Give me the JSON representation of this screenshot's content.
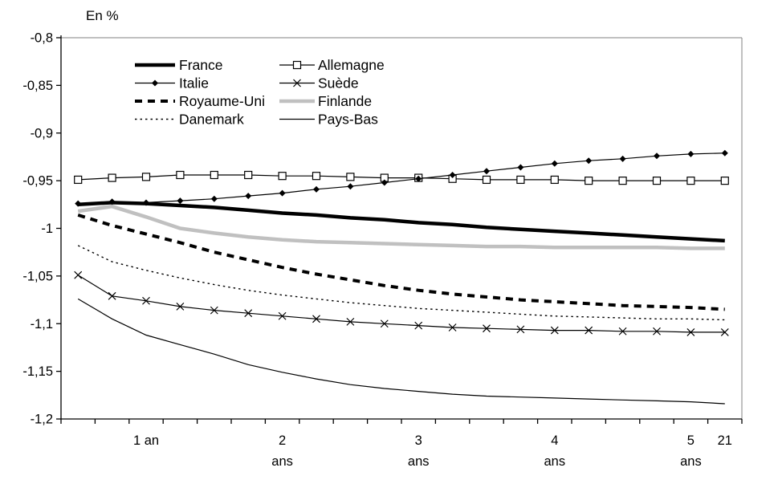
{
  "title": "En %",
  "colors": {
    "axis": "#000000",
    "plot_border": "#808080",
    "background": "#ffffff",
    "finland_gray": "#c0c0c0"
  },
  "chart_data": {
    "type": "line",
    "title": "En %",
    "x_categories": [
      0.5,
      0.75,
      1,
      1.25,
      1.5,
      1.75,
      2,
      2.25,
      2.5,
      2.75,
      3,
      3.25,
      3.5,
      3.75,
      4,
      4.25,
      4.5,
      4.75,
      5,
      21
    ],
    "x_axis_labels": [
      {
        "point_index": 2,
        "lines": [
          "1 an"
        ]
      },
      {
        "point_index": 6,
        "lines": [
          "2",
          "ans"
        ]
      },
      {
        "point_index": 10,
        "lines": [
          "3",
          "ans"
        ]
      },
      {
        "point_index": 14,
        "lines": [
          "4",
          "ans"
        ]
      },
      {
        "point_index": 18,
        "lines": [
          "5",
          "ans"
        ]
      },
      {
        "point_index": 19,
        "lines": [
          "21"
        ]
      }
    ],
    "ylim": [
      -1.2,
      -0.8
    ],
    "y_ticks": [
      {
        "value": -0.8,
        "label": "-0,8"
      },
      {
        "value": -0.85,
        "label": "-0,85"
      },
      {
        "value": -0.9,
        "label": "-0,9"
      },
      {
        "value": -0.95,
        "label": "-0,95"
      },
      {
        "value": -1.0,
        "label": "-1"
      },
      {
        "value": -1.05,
        "label": "-1,05"
      },
      {
        "value": -1.1,
        "label": "-1,1"
      },
      {
        "value": -1.15,
        "label": "-1,15"
      },
      {
        "value": -1.2,
        "label": "-1,2"
      }
    ],
    "grid": false,
    "series": [
      {
        "name": "France",
        "color": "#000000",
        "width": 4.5,
        "dash": null,
        "marker": null,
        "values": [
          -0.975,
          -0.973,
          -0.974,
          -0.976,
          -0.978,
          -0.981,
          -0.984,
          -0.986,
          -0.989,
          -0.991,
          -0.994,
          -0.996,
          -0.999,
          -1.001,
          -1.003,
          -1.005,
          -1.007,
          -1.009,
          -1.011,
          -1.013
        ]
      },
      {
        "name": "Italie",
        "color": "#000000",
        "width": 1.2,
        "dash": null,
        "marker": "diamond",
        "values": [
          -0.974,
          -0.972,
          -0.973,
          -0.971,
          -0.969,
          -0.966,
          -0.963,
          -0.959,
          -0.956,
          -0.952,
          -0.948,
          -0.944,
          -0.94,
          -0.936,
          -0.932,
          -0.929,
          -0.927,
          -0.924,
          -0.922,
          -0.921
        ]
      },
      {
        "name": "Royaume-Uni",
        "color": "#000000",
        "width": 4,
        "dash": "9 7",
        "marker": null,
        "values": [
          -0.986,
          -0.997,
          -1.006,
          -1.015,
          -1.025,
          -1.033,
          -1.041,
          -1.048,
          -1.054,
          -1.06,
          -1.065,
          -1.069,
          -1.072,
          -1.075,
          -1.077,
          -1.079,
          -1.081,
          -1.082,
          -1.083,
          -1.085
        ]
      },
      {
        "name": "Danemark",
        "color": "#000000",
        "width": 1.4,
        "dash": "2.5 4",
        "marker": null,
        "values": [
          -1.018,
          -1.035,
          -1.044,
          -1.052,
          -1.059,
          -1.065,
          -1.07,
          -1.074,
          -1.078,
          -1.081,
          -1.084,
          -1.086,
          -1.088,
          -1.09,
          -1.092,
          -1.093,
          -1.094,
          -1.095,
          -1.095,
          -1.096
        ]
      },
      {
        "name": "Allemagne",
        "color": "#000000",
        "width": 1.2,
        "dash": null,
        "marker": "square-open",
        "values": [
          -0.949,
          -0.947,
          -0.946,
          -0.944,
          -0.944,
          -0.944,
          -0.945,
          -0.945,
          -0.946,
          -0.947,
          -0.947,
          -0.948,
          -0.949,
          -0.949,
          -0.949,
          -0.95,
          -0.95,
          -0.95,
          -0.95,
          -0.95
        ]
      },
      {
        "name": "Suède",
        "color": "#000000",
        "width": 1.2,
        "dash": null,
        "marker": "x",
        "values": [
          -1.049,
          -1.071,
          -1.076,
          -1.082,
          -1.086,
          -1.089,
          -1.092,
          -1.095,
          -1.098,
          -1.1,
          -1.102,
          -1.104,
          -1.105,
          -1.106,
          -1.107,
          -1.107,
          -1.108,
          -1.108,
          -1.109,
          -1.109
        ]
      },
      {
        "name": "Finlande",
        "color": "#c0c0c0",
        "width": 4.5,
        "dash": null,
        "marker": null,
        "values": [
          -0.982,
          -0.977,
          -0.988,
          -1.0,
          -1.005,
          -1.009,
          -1.012,
          -1.014,
          -1.015,
          -1.016,
          -1.017,
          -1.018,
          -1.019,
          -1.019,
          -1.02,
          -1.02,
          -1.02,
          -1.02,
          -1.021,
          -1.021
        ]
      },
      {
        "name": "Pays-Bas",
        "color": "#000000",
        "width": 1.2,
        "dash": null,
        "marker": null,
        "values": [
          -1.074,
          -1.095,
          -1.112,
          -1.122,
          -1.132,
          -1.143,
          -1.151,
          -1.158,
          -1.164,
          -1.168,
          -1.171,
          -1.174,
          -1.176,
          -1.177,
          -1.178,
          -1.179,
          -1.18,
          -1.181,
          -1.182,
          -1.184
        ]
      }
    ],
    "legend": {
      "position": "top-inside",
      "rows": [
        [
          "France",
          "Allemagne"
        ],
        [
          "Italie",
          "Suède"
        ],
        [
          "Royaume-Uni",
          "Finlande"
        ],
        [
          "Danemark",
          "Pays-Bas"
        ]
      ]
    }
  }
}
